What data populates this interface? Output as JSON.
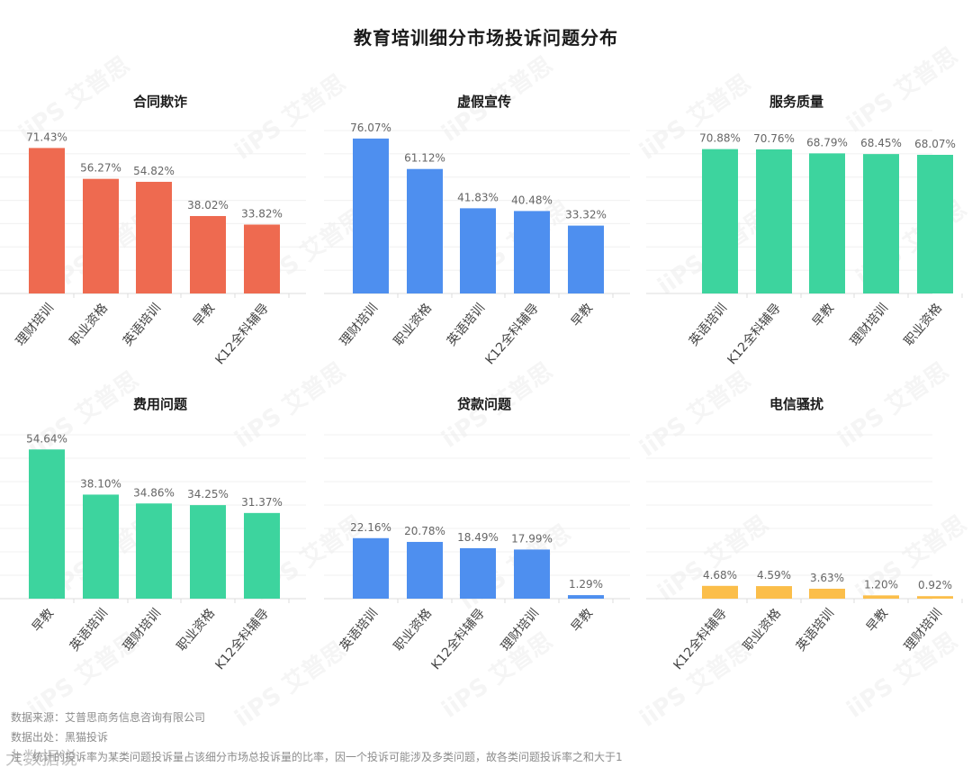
{
  "title": "教育培训细分市场投诉问题分布",
  "footer": {
    "source": "数据来源：艾普思商务信息咨询有限公司",
    "origin": "数据出处：黑猫投诉",
    "note": "注：统计的投诉率为某类问题投诉量占该细分市场总投诉量的比率，因一个投诉可能涉及多类问题，故各类问题投诉率之和大于1"
  },
  "watermark": {
    "text": "iiPS 艾普思",
    "logo_text": "大数据说"
  },
  "colors": {
    "red": "#EE6A50",
    "blue": "#4E8FEF",
    "green": "#3DD49E",
    "yellow": "#FBBE4A"
  },
  "chart_data": [
    {
      "type": "bar",
      "title": "合同欺诈",
      "color": "#EE6A50",
      "categories": [
        "理财培训",
        "职业资格",
        "英语培训",
        "早教",
        "K12全科辅导"
      ],
      "values": [
        71.43,
        56.27,
        54.82,
        38.02,
        33.82
      ],
      "labels": [
        "71.43%",
        "56.27%",
        "54.82%",
        "38.02%",
        "33.82%"
      ],
      "ylim": [
        0,
        80
      ],
      "grid": true
    },
    {
      "type": "bar",
      "title": "虚假宣传",
      "color": "#4E8FEF",
      "categories": [
        "理财培训",
        "职业资格",
        "英语培训",
        "K12全科辅导",
        "早教"
      ],
      "values": [
        76.07,
        61.12,
        41.83,
        40.48,
        33.32
      ],
      "labels": [
        "76.07%",
        "61.12%",
        "41.83%",
        "40.48%",
        "33.32%"
      ],
      "ylim": [
        0,
        80
      ],
      "grid": true
    },
    {
      "type": "bar",
      "title": "服务质量",
      "color": "#3DD49E",
      "categories": [
        "英语培训",
        "K12全科辅导",
        "早教",
        "理财培训",
        "职业资格"
      ],
      "values": [
        70.88,
        70.76,
        68.79,
        68.45,
        68.07
      ],
      "labels": [
        "70.88%",
        "70.76%",
        "68.79%",
        "68.45%",
        "68.07%"
      ],
      "ylim": [
        0,
        80
      ],
      "grid": true
    },
    {
      "type": "bar",
      "title": "费用问题",
      "color": "#3DD49E",
      "categories": [
        "早教",
        "英语培训",
        "理财培训",
        "职业资格",
        "K12全科辅导"
      ],
      "values": [
        54.64,
        38.1,
        34.86,
        34.25,
        31.37
      ],
      "labels": [
        "54.64%",
        "38.10%",
        "34.86%",
        "34.25%",
        "31.37%"
      ],
      "ylim": [
        0,
        60
      ],
      "grid": true
    },
    {
      "type": "bar",
      "title": "贷款问题",
      "color": "#4E8FEF",
      "categories": [
        "英语培训",
        "职业资格",
        "K12全科辅导",
        "理财培训",
        "早教"
      ],
      "values": [
        22.16,
        20.78,
        18.49,
        17.99,
        1.29
      ],
      "labels": [
        "22.16%",
        "20.78%",
        "18.49%",
        "17.99%",
        "1.29%"
      ],
      "ylim": [
        0,
        60
      ],
      "grid": true
    },
    {
      "type": "bar",
      "title": "电信骚扰",
      "color": "#FBBE4A",
      "categories": [
        "K12全科辅导",
        "职业资格",
        "英语培训",
        "早教",
        "理财培训"
      ],
      "values": [
        4.68,
        4.59,
        3.63,
        1.2,
        0.92
      ],
      "labels": [
        "4.68%",
        "4.59%",
        "3.63%",
        "1.20%",
        "0.92%"
      ],
      "ylim": [
        0,
        60
      ],
      "grid": true
    }
  ]
}
